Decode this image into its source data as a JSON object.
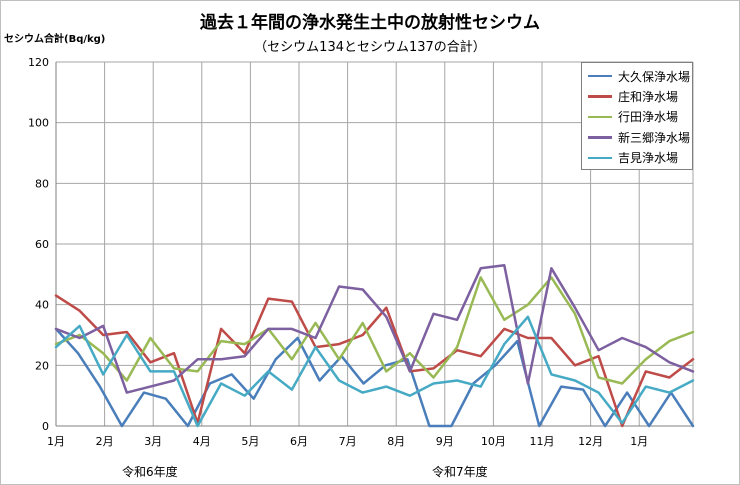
{
  "chart_data": {
    "type": "line",
    "title": "過去１年間の浄水発生土中の放射性セシウム",
    "subtitle": "（セシウム134とセシウム137の合計）",
    "ylabel": "セシウム合計(Bq/kg)",
    "ylim": [
      0,
      120
    ],
    "yticks": [
      0,
      20,
      40,
      60,
      80,
      100,
      120
    ],
    "x_month_labels": [
      "1月",
      "2月",
      "3月",
      "4月",
      "5月",
      "6月",
      "7月",
      "8月",
      "9月",
      "10月",
      "11月",
      "12月",
      "1月"
    ],
    "fiscal_year_labels": [
      "令和6年度",
      "令和7年度"
    ],
    "legend_position": "top-right",
    "grid": true,
    "series": [
      {
        "name": "大久保浄水場",
        "color": "#4a7ebb",
        "values": [
          32,
          24,
          13,
          0,
          11,
          9,
          0,
          14,
          17,
          9,
          22,
          29,
          15,
          23,
          14,
          20,
          22,
          0,
          0,
          14,
          20,
          28,
          0,
          13,
          12,
          0,
          11,
          0,
          11,
          0
        ]
      },
      {
        "name": "庄和浄水場",
        "color": "#be4b48",
        "values": [
          43,
          38,
          30,
          31,
          21,
          24,
          1,
          32,
          24,
          42,
          41,
          26,
          27,
          30,
          39,
          18,
          19,
          25,
          23,
          32,
          29,
          29,
          20,
          23,
          0,
          18,
          16,
          22
        ]
      },
      {
        "name": "行田浄水場",
        "color": "#98b954",
        "values": [
          27,
          30,
          24,
          15,
          29,
          19,
          18,
          28,
          27,
          32,
          22,
          34,
          22,
          34,
          18,
          24,
          16,
          26,
          49,
          35,
          40,
          49,
          37,
          16,
          14,
          22,
          28,
          31
        ]
      },
      {
        "name": "新三郷浄水場",
        "color": "#7d60a0",
        "values": [
          32,
          29,
          33,
          11,
          13,
          15,
          22,
          22,
          23,
          32,
          32,
          29,
          46,
          45,
          36,
          18,
          37,
          35,
          52,
          53,
          14,
          52,
          39,
          25,
          29,
          26,
          21,
          18
        ]
      },
      {
        "name": "吉見浄水場",
        "color": "#46aac5",
        "values": [
          26,
          33,
          17,
          30,
          18,
          18,
          0,
          14,
          10,
          18,
          12,
          26,
          15,
          11,
          13,
          10,
          14,
          15,
          13,
          27,
          36,
          17,
          15,
          11,
          1,
          13,
          11,
          15
        ]
      }
    ]
  }
}
